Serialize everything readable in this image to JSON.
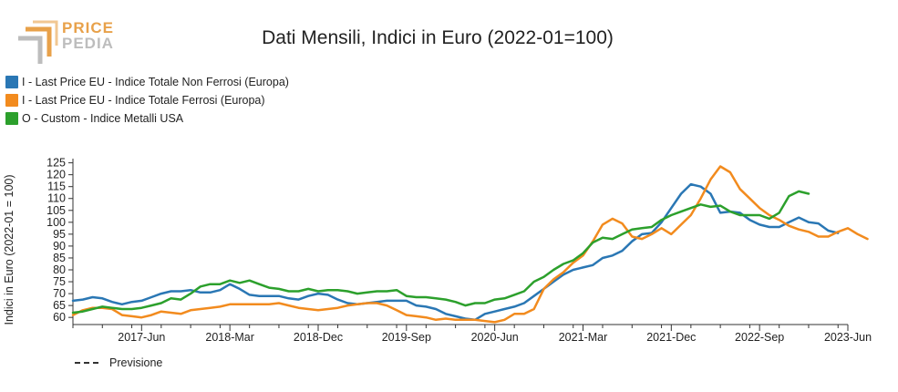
{
  "logo": {
    "line1": "PRICE",
    "line2": "PEDIA"
  },
  "chart_data": {
    "type": "line",
    "title": "Dati Mensili, Indici in Euro (2022-01=100)",
    "xlabel": "",
    "ylabel": "Indici in Euro (2022-01 = 100)",
    "ylim": [
      57,
      126
    ],
    "y_ticks": [
      60,
      65,
      70,
      75,
      80,
      85,
      90,
      95,
      100,
      105,
      110,
      115,
      120,
      125
    ],
    "x_range": [
      "2016-11",
      "2023-06"
    ],
    "x_ticks": [
      {
        "date": "2017-06",
        "label": "2017-Jun"
      },
      {
        "date": "2018-03",
        "label": "2018-Mar"
      },
      {
        "date": "2018-12",
        "label": "2018-Dec"
      },
      {
        "date": "2019-09",
        "label": "2019-Sep"
      },
      {
        "date": "2020-06",
        "label": "2020-Jun"
      },
      {
        "date": "2021-03",
        "label": "2021-Mar"
      },
      {
        "date": "2021-12",
        "label": "2021-Dec"
      },
      {
        "date": "2022-09",
        "label": "2022-Sep"
      },
      {
        "date": "2023-06",
        "label": "2023-Jun"
      }
    ],
    "legend_position": "top-left",
    "forecast_label": "Previsione",
    "series": [
      {
        "name": "I - Last Price EU - Indice Totale Non Ferrosi (Europa)",
        "color": "#2a77b4",
        "start": "2016-11",
        "values": [
          67,
          67.5,
          68.5,
          68,
          66.5,
          65.5,
          66.5,
          67,
          68.5,
          70,
          71,
          71,
          71.5,
          70.5,
          70.5,
          71.5,
          74,
          72,
          69.5,
          69,
          69,
          69,
          68,
          67.5,
          69,
          70,
          69.5,
          67.5,
          66,
          65.5,
          66,
          66.5,
          67,
          67,
          67,
          65,
          64.5,
          63.5,
          61.5,
          60.5,
          59.5,
          59,
          61.5,
          62.5,
          63.5,
          64.5,
          66,
          69,
          72,
          75,
          78,
          80,
          81,
          82,
          85,
          86,
          88,
          92,
          95,
          95.5,
          100,
          106,
          112,
          116,
          115,
          112,
          104,
          104.5,
          104,
          101,
          99,
          98,
          98,
          100,
          102,
          100,
          99.5,
          96.5,
          95.5
        ]
      },
      {
        "name": "I - Last Price EU - Indice Totale Ferrosi (Europa)",
        "color": "#f28b1e",
        "start": "2016-11",
        "values": [
          61,
          63,
          64,
          64,
          63.5,
          61,
          60.5,
          60,
          61,
          62.5,
          62,
          61.5,
          63,
          63.5,
          64,
          64.5,
          65.5,
          65.5,
          65.5,
          65.5,
          65.5,
          66,
          65,
          64,
          63.5,
          63,
          63.5,
          64,
          65,
          65.5,
          66,
          66,
          65,
          63,
          61,
          60.5,
          60,
          59,
          59.5,
          59,
          59,
          59,
          58.5,
          58,
          59,
          61.5,
          61.5,
          63.5,
          72,
          76,
          79,
          83,
          86,
          92,
          99,
          101.5,
          99.5,
          94,
          93,
          95,
          97.5,
          95,
          99,
          103,
          110,
          118,
          123.5,
          121,
          114,
          110,
          106,
          103,
          101,
          98.5,
          97,
          96,
          94,
          94,
          96,
          97.5,
          95,
          93
        ]
      },
      {
        "name": "O - Custom - Indice Metalli USA",
        "color": "#2ca02c",
        "start": "2016-11",
        "values": [
          62,
          62.5,
          63.5,
          64.5,
          64,
          63.5,
          63.5,
          64,
          65,
          66,
          68,
          67.5,
          70,
          73,
          74,
          74,
          75.5,
          74.5,
          75.5,
          74,
          72.5,
          72,
          71,
          71,
          72,
          71,
          71.5,
          71.5,
          71,
          70,
          70.5,
          71,
          71,
          71.5,
          69,
          68.5,
          68.5,
          68,
          67.5,
          66.5,
          65,
          66,
          66,
          67.5,
          68,
          69.5,
          71,
          75,
          77,
          80,
          82.5,
          84,
          87,
          91.5,
          93.5,
          93,
          95,
          97,
          97.5,
          98,
          101,
          103,
          104.5,
          106,
          107.5,
          106.5,
          107,
          104.5,
          103,
          103,
          103,
          101.5,
          104,
          111,
          113,
          112
        ]
      }
    ]
  }
}
